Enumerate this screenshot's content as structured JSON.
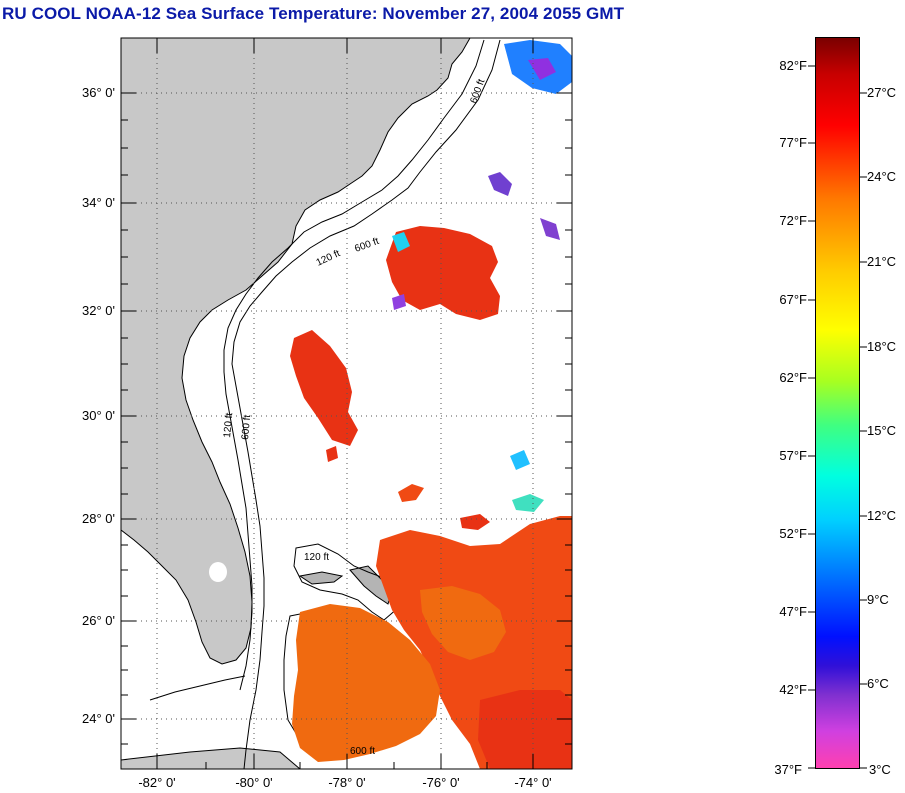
{
  "title": "RU COOL  NOAA-12  Sea Surface Temperature:  November 27, 2004 2055 GMT",
  "lat_labels": [
    "36° 0'",
    "34° 0'",
    "32° 0'",
    "30° 0'",
    "28° 0'",
    "26° 0'",
    "24° 0'"
  ],
  "lon_labels": [
    "-82° 0'",
    "-80° 0'",
    "-78° 0'",
    "-76° 0'",
    "-74° 0'"
  ],
  "colorbar": {
    "fahrenheit": [
      "82°F",
      "77°F",
      "72°F",
      "67°F",
      "62°F",
      "57°F",
      "52°F",
      "47°F",
      "42°F",
      "37°F"
    ],
    "celsius": [
      "27°C",
      "24°C",
      "21°C",
      "18°C",
      "15°C",
      "12°C",
      "9°C",
      "6°C",
      "3°C"
    ]
  },
  "contour_labels": [
    "600 ft",
    "120 ft",
    "600 ft",
    "120 ft",
    "600 ft",
    "120 ft",
    "600 ft"
  ],
  "colors": {
    "land": "#c8c8c8",
    "title": "#0b1aa8",
    "sst_hot": "#e83214",
    "sst_warm": "#f06a10"
  }
}
